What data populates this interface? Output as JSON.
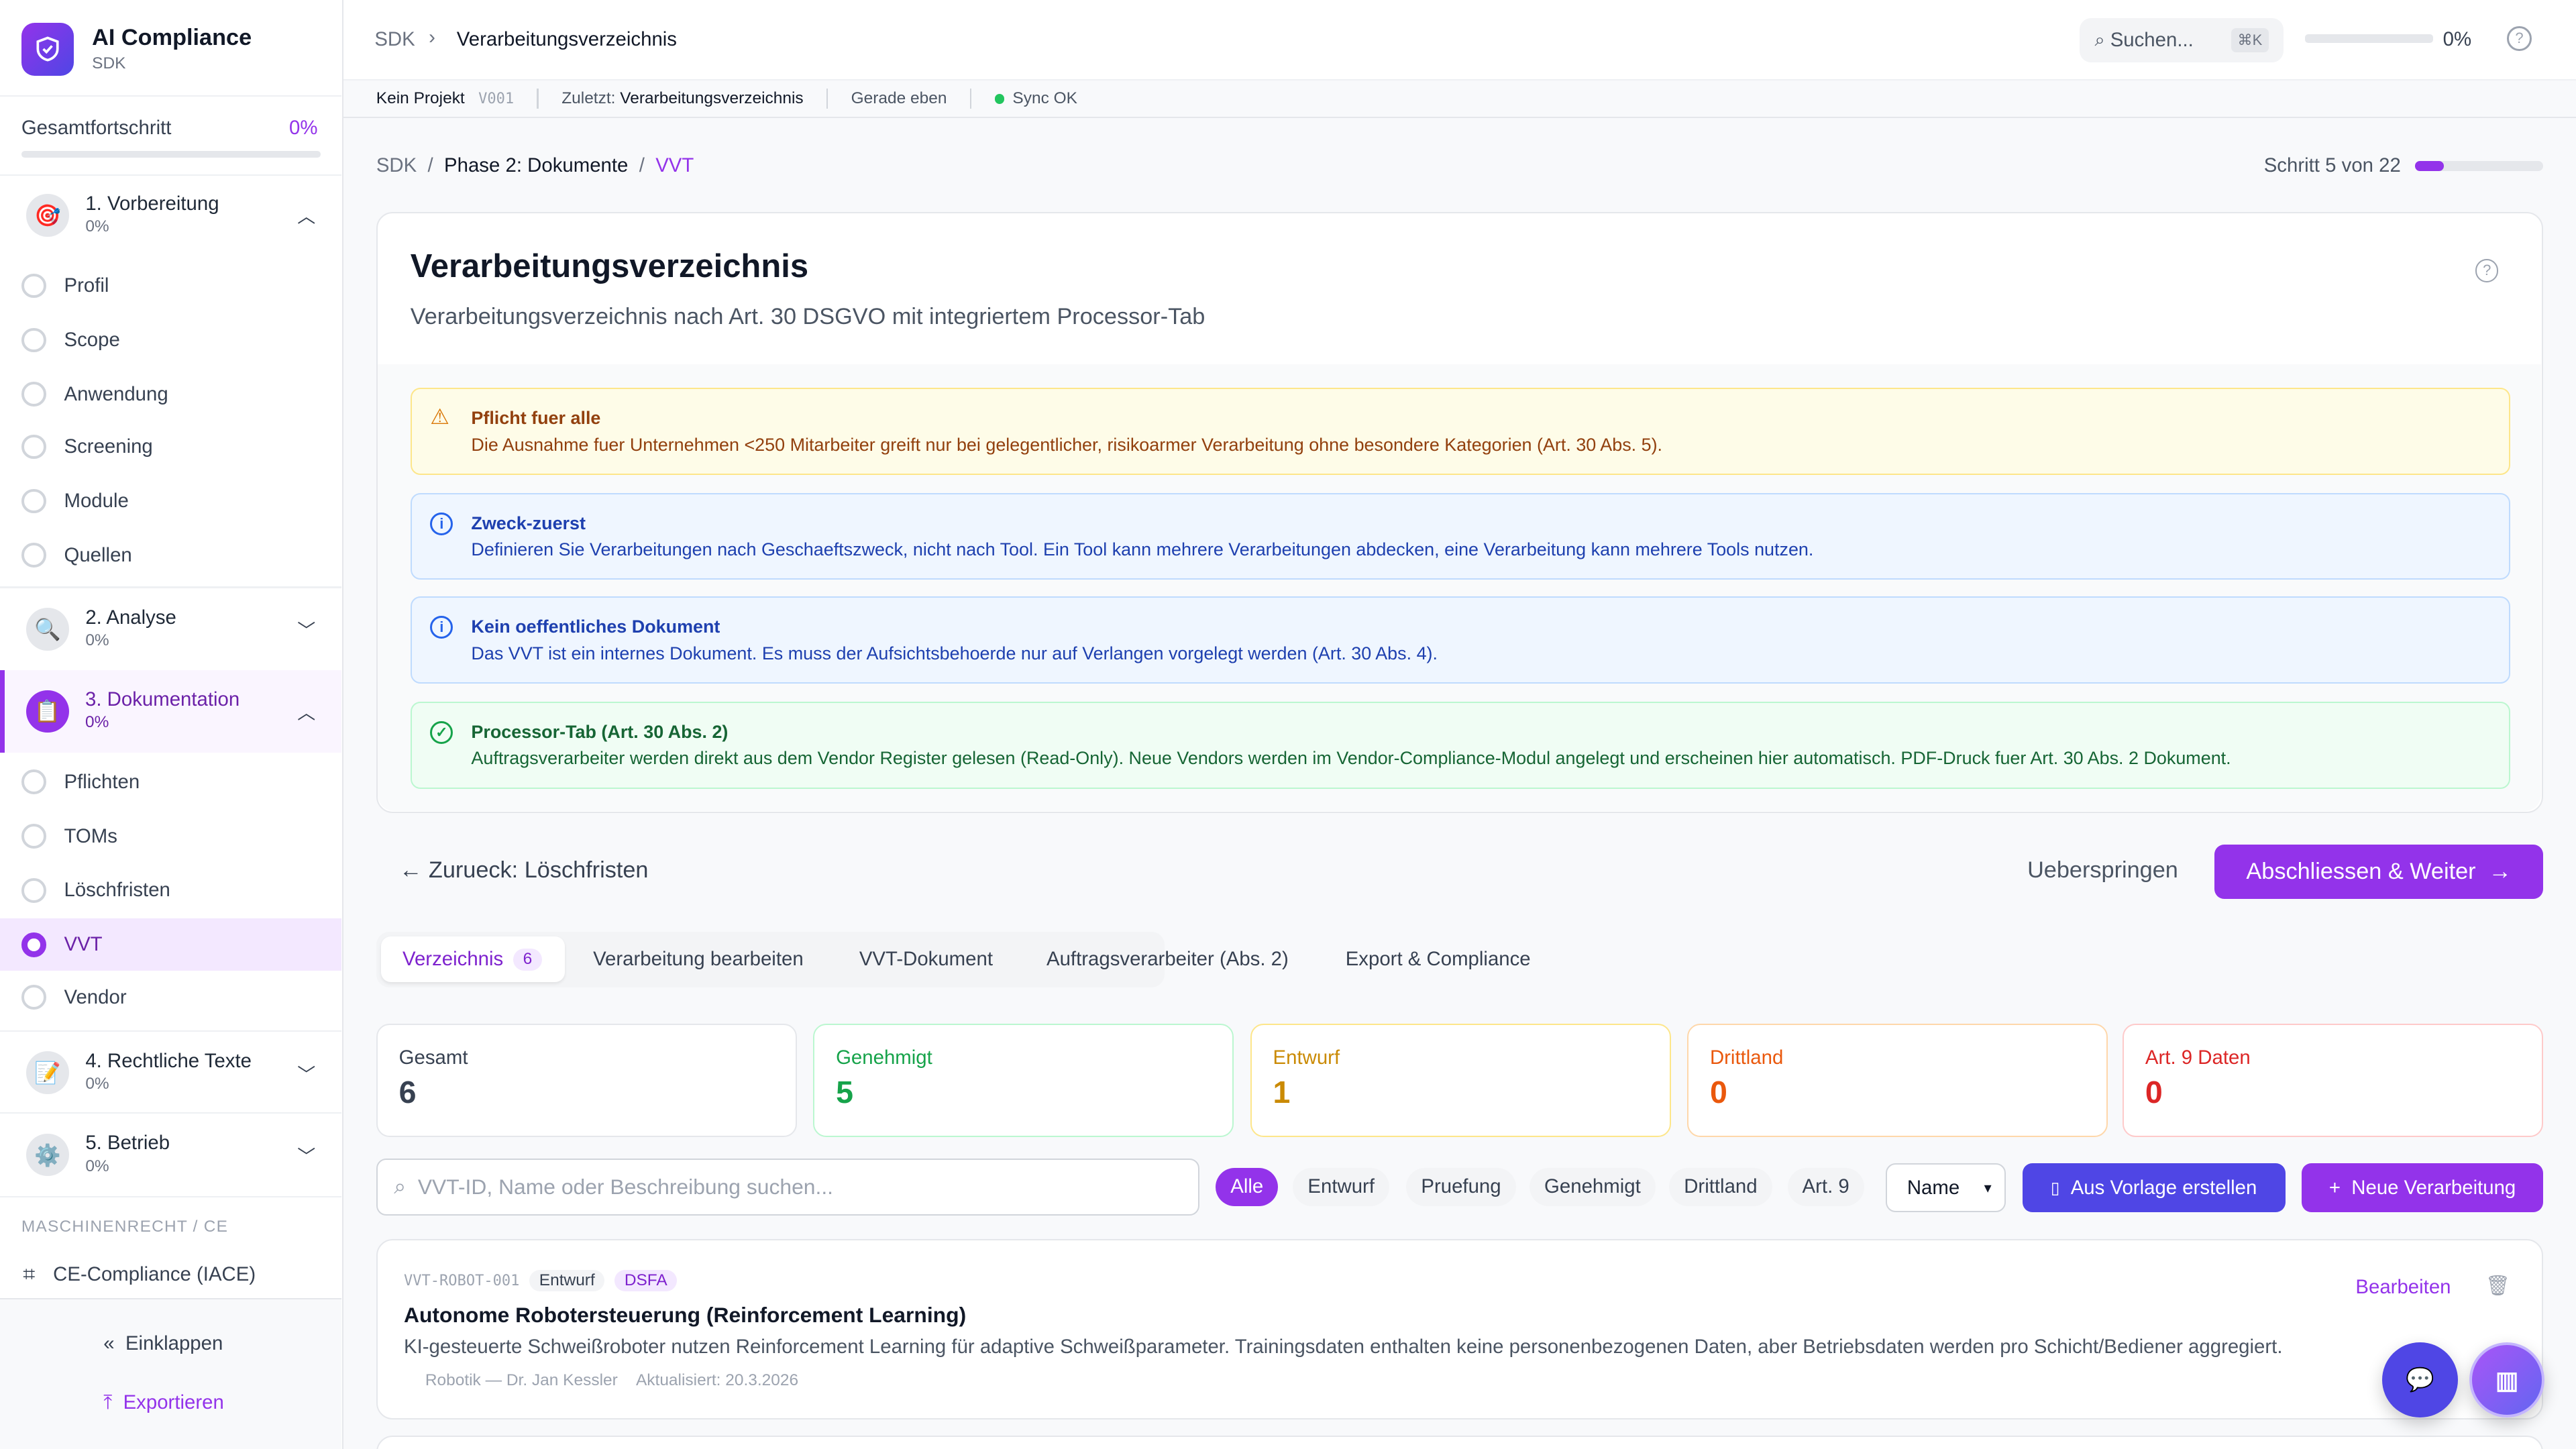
{
  "app": {
    "name": "AI Compliance",
    "sub": "SDK"
  },
  "sidebar": {
    "progress_label": "Gesamtfortschritt",
    "progress_value": "0%",
    "progress_fraction": 0,
    "phases": [
      {
        "label": "1. Vorbereitung",
        "pct": "0%",
        "icon": "target-icon",
        "expanded": true,
        "items": [
          "Profil",
          "Scope",
          "Anwendung",
          "Screening",
          "Module",
          "Quellen"
        ]
      },
      {
        "label": "2. Analyse",
        "pct": "0%",
        "icon": "magnifier-icon",
        "expanded": false
      },
      {
        "label": "3. Dokumentation",
        "pct": "0%",
        "icon": "clipboard-icon",
        "expanded": true,
        "items": [
          "Pflichten",
          "TOMs",
          "Löschfristen",
          "VVT",
          "Vendor"
        ],
        "active_item": "VVT"
      },
      {
        "label": "4. Rechtliche Texte",
        "pct": "0%",
        "icon": "memo-icon",
        "expanded": false
      },
      {
        "label": "5. Betrieb",
        "pct": "0%",
        "icon": "gear-icon",
        "expanded": false
      }
    ],
    "section_label": "MASCHINENRECHT / CE",
    "ce_item": "CE-Compliance (IACE)",
    "collapse": "Einklappen",
    "export": "Exportieren"
  },
  "header": {
    "crumb_root": "SDK",
    "crumb_current": "Verarbeitungsverzeichnis",
    "search_placeholder": "Suchen...",
    "search_shortcut": "⌘K",
    "progress": "0%",
    "progress_fraction": 0
  },
  "subbar": {
    "project": "Kein Projekt",
    "version": "V001",
    "last_label": "Zuletzt:",
    "last_value": "Verarbeitungsverzeichnis",
    "time": "Gerade eben",
    "sync": "Sync OK"
  },
  "breadcrumb": {
    "items": [
      "SDK",
      "Phase 2: Dokumente",
      "VVT"
    ],
    "step": "Schritt 5 von 22",
    "step_fraction": 0.227
  },
  "page": {
    "title": "Verarbeitungsverzeichnis",
    "subtitle": "Verarbeitungsverzeichnis nach Art. 30 DSGVO mit integriertem Processor-Tab"
  },
  "alerts": [
    {
      "title": "Pflicht fuer alle",
      "text": "Die Ausnahme fuer Unternehmen <250 Mitarbeiter greift nur bei gelegentlicher, risikoarmer Verarbeitung ohne besondere Kategorien (Art. 30 Abs. 5).",
      "type": "warning"
    },
    {
      "title": "Zweck-zuerst",
      "text": "Definieren Sie Verarbeitungen nach Geschaeftszweck, nicht nach Tool. Ein Tool kann mehrere Verarbeitungen abdecken, eine Verarbeitung kann mehrere Tools nutzen.",
      "type": "info"
    },
    {
      "title": "Kein oeffentliches Dokument",
      "text": "Das VVT ist ein internes Dokument. Es muss der Aufsichtsbehoerde nur auf Verlangen vorgelegt werden (Art. 30 Abs. 4).",
      "type": "info"
    },
    {
      "title": "Processor-Tab (Art. 30 Abs. 2)",
      "text": "Auftragsverarbeiter werden direkt aus dem Vendor Register gelesen (Read-Only). Neue Vendors werden im Vendor-Compliance-Modul angelegt und erscheinen hier automatisch. PDF-Druck fuer Art. 30 Abs. 2 Dokument.",
      "type": "success"
    }
  ],
  "nav": {
    "back": "Zurueck: Löschfristen",
    "skip": "Ueberspringen",
    "next": "Abschliessen & Weiter"
  },
  "tabs": [
    {
      "label": "Verzeichnis",
      "count": "6",
      "active": true
    },
    {
      "label": "Verarbeitung bearbeiten"
    },
    {
      "label": "VVT-Dokument"
    },
    {
      "label": "Auftragsverarbeiter (Abs. 2)"
    },
    {
      "label": "Export & Compliance"
    }
  ],
  "stats": [
    {
      "label": "Gesamt",
      "value": "6",
      "color": "#374151"
    },
    {
      "label": "Genehmigt",
      "value": "5",
      "color": "#16a34a"
    },
    {
      "label": "Entwurf",
      "value": "1",
      "color": "#ca8a04"
    },
    {
      "label": "Drittland",
      "value": "0",
      "color": "#ea580c"
    },
    {
      "label": "Art. 9 Daten",
      "value": "0",
      "color": "#dc2626"
    }
  ],
  "filter": {
    "search_placeholder": "VVT-ID, Name oder Beschreibung suchen...",
    "chips": [
      "Alle",
      "Entwurf",
      "Pruefung",
      "Genehmigt",
      "Drittland",
      "Art. 9"
    ],
    "active_chip": "Alle",
    "sort": "Name",
    "template_btn": "Aus Vorlage erstellen",
    "new_btn": "Neue Verarbeitung"
  },
  "records": [
    {
      "id": "VVT-ROBOT-001",
      "status": "Entwurf",
      "tag": "DSFA",
      "title": "Autonome Robotersteuerung (Reinforcement Learning)",
      "desc": "KI-gesteuerte Schweißroboter nutzen Reinforcement Learning für adaptive Schweißparameter. Trainingsdaten enthalten keine personenbezogenen Daten, aber Betriebsdaten werden pro Schicht/Bediener aggregiert.",
      "owner": "Robotik — Dr. Jan Kessler",
      "updated": "Aktualisiert: 20.3.2026",
      "edit": "Bearbeiten"
    }
  ],
  "colors": {
    "accent": "#9333ea",
    "indigo": "#4f46e5"
  }
}
